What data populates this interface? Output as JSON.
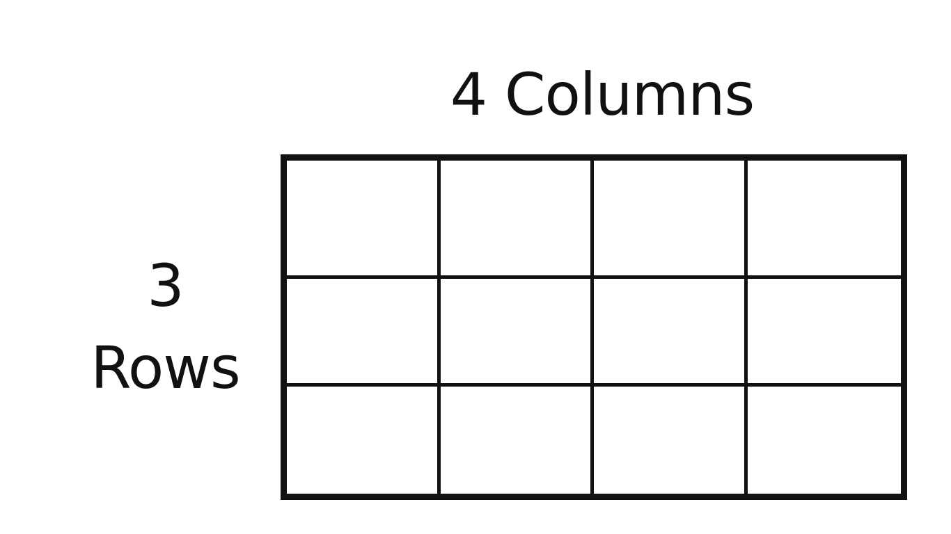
{
  "labels": {
    "columns": "4 Columns",
    "rows_number": "3",
    "rows_word": "Rows"
  },
  "grid": {
    "rows": 3,
    "columns": 4,
    "line_color": "#111111",
    "fill_color": "#ffffff"
  }
}
